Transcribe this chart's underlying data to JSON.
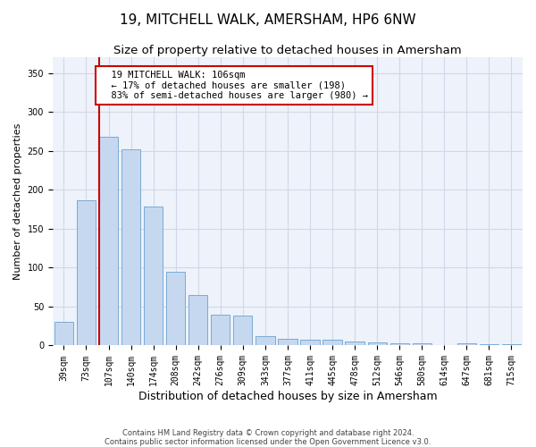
{
  "title": "19, MITCHELL WALK, AMERSHAM, HP6 6NW",
  "subtitle": "Size of property relative to detached houses in Amersham",
  "xlabel": "Distribution of detached houses by size in Amersham",
  "ylabel": "Number of detached properties",
  "categories": [
    "39sqm",
    "73sqm",
    "107sqm",
    "140sqm",
    "174sqm",
    "208sqm",
    "242sqm",
    "276sqm",
    "309sqm",
    "343sqm",
    "377sqm",
    "411sqm",
    "445sqm",
    "478sqm",
    "512sqm",
    "546sqm",
    "580sqm",
    "614sqm",
    "647sqm",
    "681sqm",
    "715sqm"
  ],
  "values": [
    30,
    187,
    268,
    252,
    178,
    95,
    65,
    40,
    38,
    12,
    9,
    8,
    7,
    5,
    4,
    3,
    3,
    1,
    3,
    2,
    2
  ],
  "bar_color": "#c5d8f0",
  "bar_edge_color": "#7baad4",
  "highlight_bar_index": 2,
  "highlight_line_color": "#cc0000",
  "annotation_text": "  19 MITCHELL WALK: 106sqm\n  ← 17% of detached houses are smaller (198)\n  83% of semi-detached houses are larger (980) →",
  "annotation_box_color": "#ffffff",
  "annotation_box_edge_color": "#cc0000",
  "ylim": [
    0,
    370
  ],
  "yticks": [
    0,
    50,
    100,
    150,
    200,
    250,
    300,
    350
  ],
  "grid_color": "#d0d8e8",
  "background_color": "#eef2fa",
  "footer_line1": "Contains HM Land Registry data © Crown copyright and database right 2024.",
  "footer_line2": "Contains public sector information licensed under the Open Government Licence v3.0.",
  "title_fontsize": 11,
  "subtitle_fontsize": 9.5,
  "xlabel_fontsize": 9,
  "ylabel_fontsize": 8,
  "tick_fontsize": 7,
  "annotation_fontsize": 7.5,
  "footer_fontsize": 6
}
